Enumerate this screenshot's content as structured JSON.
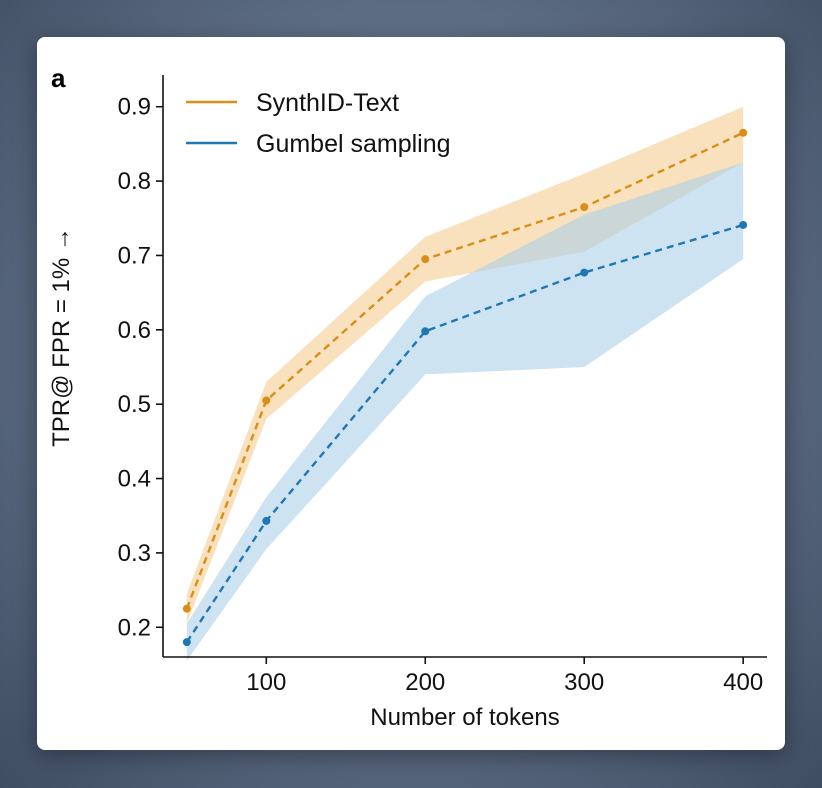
{
  "panel_label": "a",
  "colors": {
    "synthid": "#d98f17",
    "synthid_band": "#f5d7a6",
    "gumbel": "#1f77b4",
    "gumbel_band": "#aed0e8",
    "axis": "#111111"
  },
  "chart_data": {
    "type": "line",
    "xlabel": "Number of tokens",
    "ylabel": "TPR@ FPR = 1% →",
    "x": [
      50,
      100,
      200,
      300,
      400
    ],
    "xlim": [
      35,
      415
    ],
    "ylim": [
      0.16,
      0.94
    ],
    "xticks": [
      100,
      200,
      300,
      400
    ],
    "xtick_labels": [
      "100",
      "200",
      "300",
      "400"
    ],
    "yticks": [
      0.2,
      0.3,
      0.4,
      0.5,
      0.6,
      0.7,
      0.8,
      0.9
    ],
    "ytick_labels": [
      "0.2",
      "0.3",
      "0.4",
      "0.5",
      "0.6",
      "0.7",
      "0.8",
      "0.9"
    ],
    "grid": false,
    "legend_position": "top-left",
    "series": [
      {
        "name": "SynthID-Text",
        "values": [
          0.225,
          0.505,
          0.695,
          0.765,
          0.865
        ],
        "lower": [
          0.205,
          0.48,
          0.665,
          0.705,
          0.825
        ],
        "upper": [
          0.245,
          0.53,
          0.725,
          0.81,
          0.9
        ],
        "line_style": "dashed",
        "legend_style": "solid"
      },
      {
        "name": "Gumbel sampling",
        "values": [
          0.18,
          0.343,
          0.598,
          0.677,
          0.741
        ],
        "lower": [
          0.155,
          0.305,
          0.54,
          0.55,
          0.695
        ],
        "upper": [
          0.205,
          0.375,
          0.645,
          0.755,
          0.825
        ],
        "line_style": "dashed",
        "legend_style": "solid"
      }
    ]
  }
}
